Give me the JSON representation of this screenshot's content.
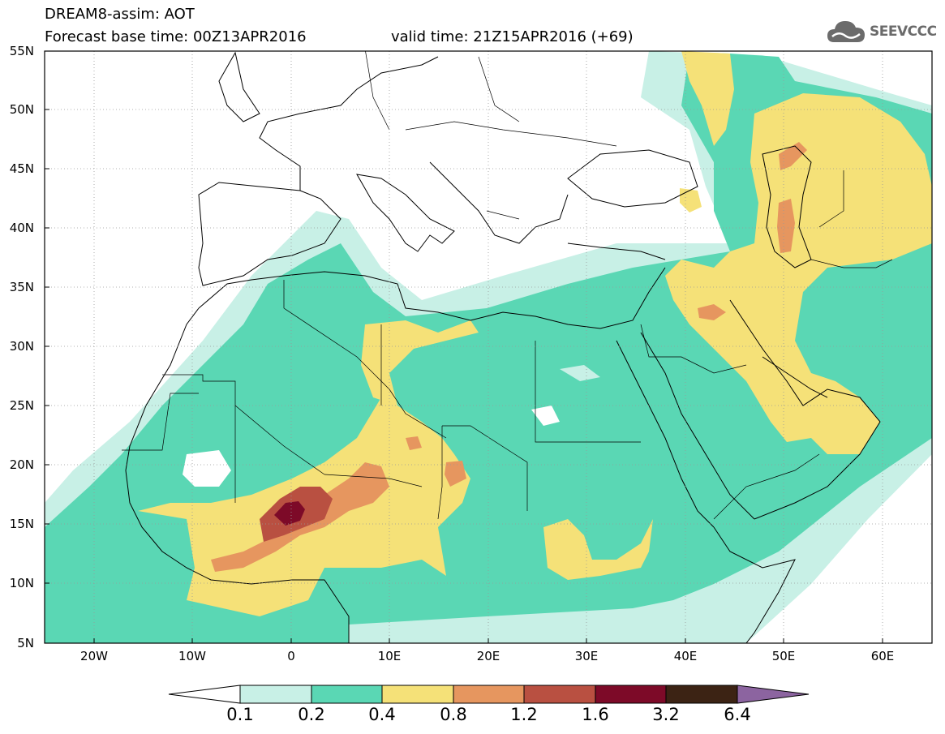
{
  "header": {
    "line1": "DREAM8-assim: AOT",
    "line2": "Forecast base time: 00Z13APR2016",
    "line3": "valid time: 21Z15APR2016 (+69)"
  },
  "logo": {
    "text": "SEEVCCC",
    "icon": "cloud-icon"
  },
  "map": {
    "lat_labels": [
      "55N",
      "50N",
      "45N",
      "40N",
      "35N",
      "30N",
      "25N",
      "20N",
      "15N",
      "10N",
      "5N"
    ],
    "lon_labels": [
      "20W",
      "10W",
      "0",
      "10E",
      "20E",
      "30E",
      "40E",
      "50E",
      "60E"
    ]
  },
  "legend": {
    "ticks": [
      "0.1",
      "0.2",
      "0.4",
      "0.8",
      "1.2",
      "1.6",
      "3.2",
      "6.4"
    ],
    "colors": [
      "#ffffff",
      "#c8f0e6",
      "#5ad7b4",
      "#f5e178",
      "#e6965f",
      "#b95041",
      "#7d0a28",
      "#3c2314",
      "#8c64a0"
    ]
  }
}
